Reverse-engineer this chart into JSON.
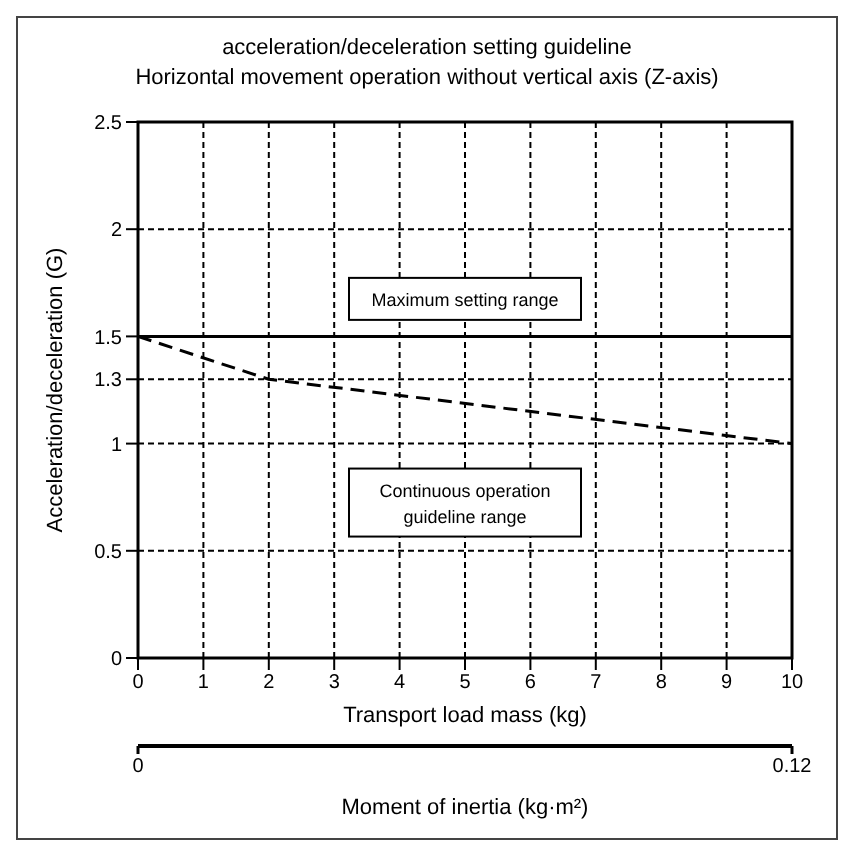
{
  "chart_data": {
    "type": "line",
    "title": "acceleration/deceleration setting guideline",
    "subtitle": "Horizontal movement operation without vertical axis (Z-axis)",
    "xlabel": "Transport load mass (kg)",
    "ylabel": "Acceleration/deceleration (G)",
    "x2label": "Moment of inertia (kg·m²)",
    "xlim": [
      0,
      10
    ],
    "xticks": [
      0,
      1,
      2,
      3,
      4,
      5,
      6,
      7,
      8,
      9,
      10
    ],
    "ylim": [
      0,
      2.5
    ],
    "yticks": [
      0,
      0.5,
      1,
      1.3,
      1.5,
      2,
      2.5
    ],
    "x2lim": [
      0,
      0.12
    ],
    "x2ticks": [
      0,
      0.12
    ],
    "series": [
      {
        "color": "#000000",
        "line_style": "solid",
        "x": [
          0,
          10
        ],
        "values": [
          1.5,
          1.5
        ]
      },
      {
        "color": "#000000",
        "line_style": "dashed",
        "x": [
          0,
          2,
          10
        ],
        "values": [
          1.5,
          1.3,
          1.0
        ]
      }
    ],
    "annotations": [
      "Maximum setting range",
      "Continuous operation guideline range"
    ],
    "grid": true,
    "marker": "none"
  }
}
